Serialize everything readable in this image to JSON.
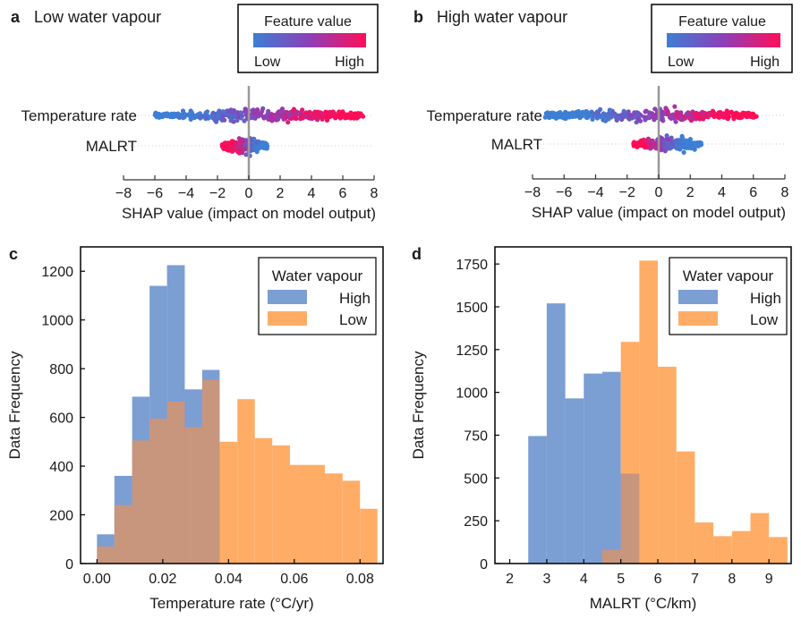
{
  "colors": {
    "shap_low": "#3d7fd4",
    "shap_mid": "#8e3fb8",
    "shap_high": "#ff0d57",
    "hist_high": "#7b9ed3",
    "hist_low": "#ffad66",
    "hist_overlap": "#c8957d",
    "zero_line": "#999999"
  },
  "chart_data": [
    {
      "panel": "a",
      "type": "scatter",
      "subtype": "shap-beeswarm",
      "title": "Low water vapour",
      "xlabel": "SHAP value (impact on model output)",
      "xlim": [
        -8,
        8
      ],
      "xticks": [
        -8,
        -6,
        -4,
        -2,
        0,
        2,
        4,
        6,
        8
      ],
      "tick_labels": [
        "−8",
        "−6",
        "−4",
        "−2",
        "0",
        "2",
        "4",
        "6",
        "8"
      ],
      "features": [
        {
          "name": "Temperature rate",
          "min": -6.0,
          "max": 7.3,
          "low_value_range": [
            -6.0,
            -1.0
          ],
          "high_value_range": [
            3.0,
            7.3
          ]
        },
        {
          "name": "MALRT",
          "min": -1.7,
          "max": 1.2,
          "low_value_range": [
            0.0,
            1.2
          ],
          "high_value_range": [
            -1.7,
            -0.5
          ]
        }
      ],
      "legend": {
        "title": "Feature value",
        "low": "Low",
        "high": "High"
      }
    },
    {
      "panel": "b",
      "type": "scatter",
      "subtype": "shap-beeswarm",
      "title": "High water vapour",
      "xlabel": "SHAP value (impact on model output)",
      "xlim": [
        -8,
        8
      ],
      "xticks": [
        -8,
        -6,
        -4,
        -2,
        0,
        2,
        4,
        6,
        8
      ],
      "tick_labels": [
        "−8",
        "−6",
        "−4",
        "−2",
        "0",
        "2",
        "4",
        "6",
        "8"
      ],
      "features": [
        {
          "name": "Temperature rate",
          "min": -7.2,
          "max": 6.2,
          "low_value_range": [
            -7.2,
            -1.0
          ],
          "high_value_range": [
            2.0,
            6.2
          ]
        },
        {
          "name": "MALRT",
          "min": -1.6,
          "max": 2.7,
          "low_value_range": [
            0.0,
            2.7
          ],
          "high_value_range": [
            -1.6,
            -0.5
          ]
        }
      ],
      "legend": {
        "title": "Feature value",
        "low": "Low",
        "high": "High"
      }
    },
    {
      "panel": "c",
      "type": "bar",
      "subtype": "histogram",
      "xlabel": "Temperature rate (°C/yr)",
      "ylabel": "Data Frequency",
      "xlim": [
        -0.005,
        0.087
      ],
      "ylim": [
        0,
        1300
      ],
      "xticks": [
        0.0,
        0.02,
        0.04,
        0.06,
        0.08
      ],
      "xtick_labels": [
        "0.00",
        "0.02",
        "0.04",
        "0.06",
        "0.08"
      ],
      "yticks": [
        0,
        200,
        400,
        600,
        800,
        1000,
        1200
      ],
      "legend": {
        "title": "Water vapour",
        "placement": "top-right"
      },
      "series": [
        {
          "name": "High",
          "bins": [
            0.0,
            0.0053,
            0.0107,
            0.016,
            0.0213,
            0.0267,
            0.032,
            0.0373
          ],
          "values": [
            120,
            360,
            685,
            1140,
            1225,
            715,
            795
          ]
        },
        {
          "name": "Low",
          "bins": [
            0.0,
            0.0053,
            0.0107,
            0.016,
            0.0213,
            0.0267,
            0.032,
            0.0373,
            0.0427,
            0.048,
            0.0533,
            0.0587,
            0.064,
            0.0693,
            0.0747,
            0.08,
            0.0853
          ],
          "values": [
            70,
            240,
            505,
            595,
            665,
            560,
            755,
            500,
            675,
            515,
            485,
            405,
            405,
            370,
            340,
            225,
            20
          ]
        }
      ]
    },
    {
      "panel": "d",
      "type": "bar",
      "subtype": "histogram",
      "xlabel": "MALRT (°C/km)",
      "ylabel": "Data Frequency",
      "xlim": [
        1.6,
        9.6
      ],
      "ylim": [
        0,
        1850
      ],
      "xticks": [
        2,
        3,
        4,
        5,
        6,
        7,
        8,
        9
      ],
      "yticks": [
        0,
        250,
        500,
        750,
        1000,
        1250,
        1500,
        1750
      ],
      "legend": {
        "title": "Water vapour",
        "placement": "top-right"
      },
      "series": [
        {
          "name": "High",
          "bins": [
            2.5,
            3.0,
            3.5,
            4.0,
            4.5,
            5.0,
            5.5
          ],
          "values": [
            745,
            1520,
            965,
            1110,
            1120,
            525
          ]
        },
        {
          "name": "Low",
          "bins": [
            4.5,
            5.0,
            5.5,
            6.0,
            6.5,
            7.0,
            7.5,
            8.0,
            8.5,
            9.0,
            9.5
          ],
          "values": [
            80,
            1295,
            1770,
            1150,
            655,
            240,
            160,
            190,
            295,
            155
          ]
        }
      ]
    }
  ],
  "panels": {
    "a": {
      "letter": "a",
      "title": "Low water vapour"
    },
    "b": {
      "letter": "b",
      "title": "High water vapour"
    },
    "c": {
      "letter": "c"
    },
    "d": {
      "letter": "d"
    }
  }
}
